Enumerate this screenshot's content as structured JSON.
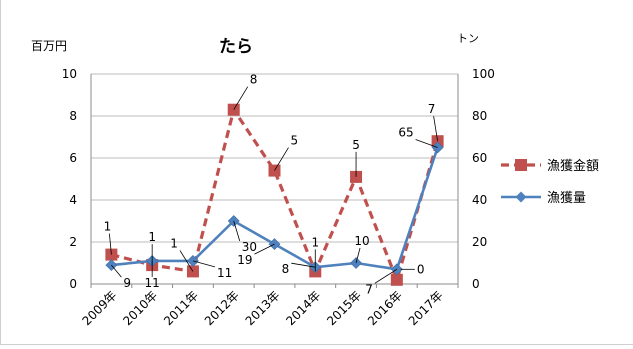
{
  "chart_data": {
    "type": "line",
    "title": "たら",
    "y_left_unit": "百万円",
    "y_right_unit": "トン",
    "categories": [
      "2009年",
      "2010年",
      "2011年",
      "2012年",
      "2013年",
      "2014年",
      "2015年",
      "2016年",
      "2017年"
    ],
    "y_left_range": [
      0,
      10
    ],
    "y_left_ticks": [
      "0",
      "2",
      "4",
      "6",
      "8",
      "10"
    ],
    "y_right_range": [
      0,
      100
    ],
    "y_right_ticks": [
      "0",
      "20",
      "40",
      "60",
      "80",
      "100"
    ],
    "grid": true,
    "legend_position": "right",
    "series": [
      {
        "name": "漁獲金額",
        "axis": "left",
        "color": "#c0504d",
        "line_style": "dashed",
        "marker": "square",
        "values": [
          1.4,
          0.9,
          0.6,
          8.3,
          5.4,
          0.6,
          5.1,
          0.2,
          6.8
        ],
        "labels": [
          "1",
          "1",
          "1",
          "8",
          "5",
          "1",
          "5",
          "",
          "7"
        ]
      },
      {
        "name": "漁獲量",
        "axis": "right",
        "color": "#4f81bd",
        "line_style": "solid",
        "marker": "diamond",
        "values": [
          9,
          11,
          11,
          30,
          19,
          8,
          10,
          7,
          65
        ],
        "labels": [
          "9",
          "11",
          "11",
          "30",
          "19",
          "8",
          "10",
          "7",
          "65"
        ]
      }
    ],
    "extra_labels": [
      "0"
    ]
  }
}
